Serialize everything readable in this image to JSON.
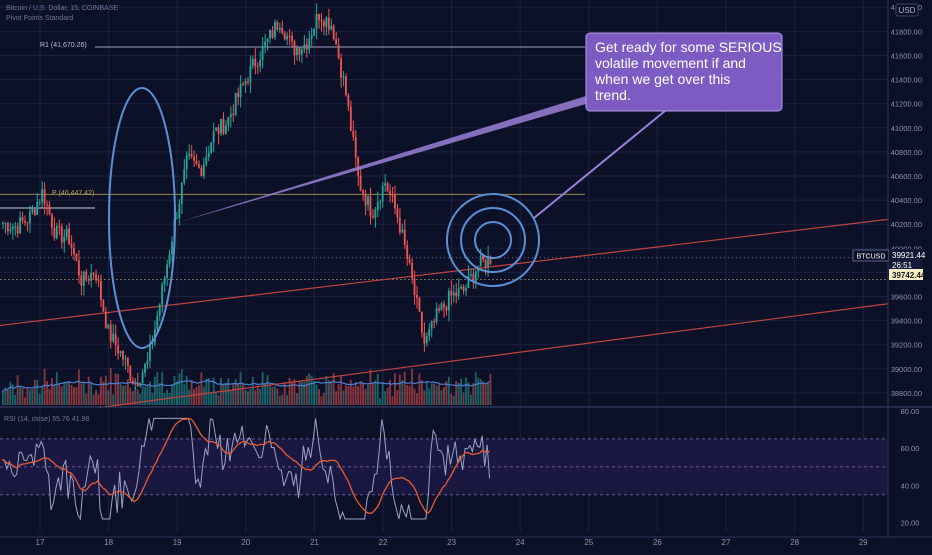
{
  "header": {
    "symbol_line": "Bitcoin / U.S. Dollar, 15, COINBASE",
    "indicator_line": "Pivot Points Standard",
    "scale_currency": "USD"
  },
  "pivot_r1": {
    "label": "R1 (41,670.26)",
    "price": 41670.26
  },
  "pivot_p": {
    "label": "P (40,447.42)",
    "price": 40447.42
  },
  "annotation": {
    "text_lines": [
      "Get ready for some SERIOUS",
      "volatile movement if and",
      "when we get over this",
      "trend."
    ],
    "fill": "#7c5cc2"
  },
  "price_badges": {
    "symbol": "BTCUSD",
    "last": "39921.44",
    "countdown": "26:51",
    "level": "39742.44"
  },
  "rsi_label": "RSI (14, close) 55.76 41.98",
  "colors": {
    "bg": "#0d1127",
    "up": "#26a69a",
    "down": "#ef5350",
    "trend": "#c0443f",
    "circle": "#5b8fd6",
    "grid": "#1b2142",
    "rsi_line": "#9aa3c7",
    "rsi_ma": "#e85a33"
  },
  "chart_data": {
    "type": "candlestick",
    "title": "",
    "x_ticks": [
      "17",
      "18",
      "19",
      "20",
      "21",
      "22",
      "23",
      "24",
      "25",
      "26",
      "27",
      "28",
      "29"
    ],
    "price_ticks": [
      38800,
      39000,
      39200,
      39400,
      39600,
      39800,
      40000,
      40200,
      40400,
      40600,
      40800,
      41000,
      41200,
      41400,
      41600,
      41800,
      42000
    ],
    "ylim": [
      38700,
      42060
    ],
    "rsi_ticks": [
      20,
      40,
      60,
      80
    ],
    "rsi_ylim": [
      15,
      80
    ],
    "rsi_bands": [
      35,
      50,
      65
    ],
    "candle_anchor_closes": [
      40210,
      40180,
      40250,
      40470,
      40120,
      40090,
      39720,
      39820,
      39300,
      39120,
      38880,
      39050,
      39600,
      40200,
      40730,
      40650,
      40950,
      41050,
      41300,
      41520,
      41700,
      41900,
      41650,
      41700,
      41950,
      41850,
      41300,
      40550,
      40300,
      40550,
      40250,
      39750,
      39200,
      39450,
      39600,
      39650,
      39850,
      39921
    ]
  }
}
